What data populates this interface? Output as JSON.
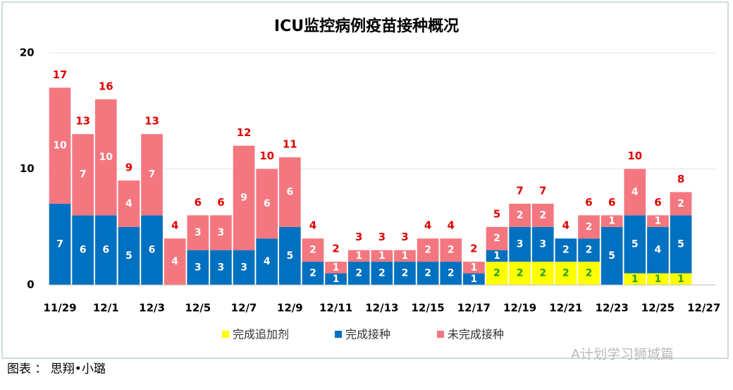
{
  "chart_data": {
    "type": "stacked_bar",
    "title": "ICU监控病例疫苗接种概况",
    "categories": [
      "11/29",
      null,
      "12/1",
      null,
      "12/3",
      null,
      "12/5",
      null,
      "12/7",
      null,
      "12/9",
      null,
      "12/11",
      null,
      "12/13",
      null,
      "12/15",
      null,
      "12/17",
      null,
      "12/19",
      null,
      "12/21",
      null,
      "12/23",
      null,
      "12/25",
      null,
      "12/27"
    ],
    "series": [
      {
        "name": "完成追加剂",
        "color": "#ffff00",
        "label_color": "#22a022",
        "values": [
          null,
          null,
          null,
          null,
          null,
          null,
          null,
          null,
          null,
          null,
          null,
          null,
          null,
          null,
          null,
          null,
          null,
          null,
          null,
          2,
          2,
          2,
          2,
          2,
          null,
          1,
          1,
          1,
          null
        ]
      },
      {
        "name": "完成接种",
        "color": "#0070c0",
        "label_color": "#ffffff",
        "values": [
          7,
          6,
          6,
          5,
          6,
          null,
          3,
          3,
          3,
          4,
          5,
          2,
          1,
          2,
          2,
          2,
          2,
          2,
          1,
          1,
          3,
          3,
          2,
          2,
          5,
          5,
          4,
          5,
          null
        ]
      },
      {
        "name": "未完成接种",
        "color": "#f4777f",
        "label_color": "#ffffff",
        "values": [
          10,
          7,
          10,
          4,
          7,
          4,
          3,
          3,
          9,
          6,
          6,
          2,
          1,
          1,
          1,
          1,
          2,
          2,
          1,
          2,
          2,
          2,
          null,
          2,
          1,
          4,
          1,
          2,
          null
        ]
      }
    ],
    "totals": [
      17,
      13,
      16,
      9,
      13,
      4,
      6,
      6,
      12,
      10,
      11,
      4,
      2,
      3,
      3,
      3,
      4,
      4,
      2,
      5,
      7,
      7,
      4,
      6,
      6,
      10,
      6,
      8,
      null
    ],
    "total_color": "#e00000",
    "ylim": [
      0,
      20
    ],
    "yticks": [
      0,
      10,
      20
    ],
    "grid": true,
    "source": "图表 ： 思翔•小璐",
    "watermark": "A计划学习狮城篇"
  }
}
